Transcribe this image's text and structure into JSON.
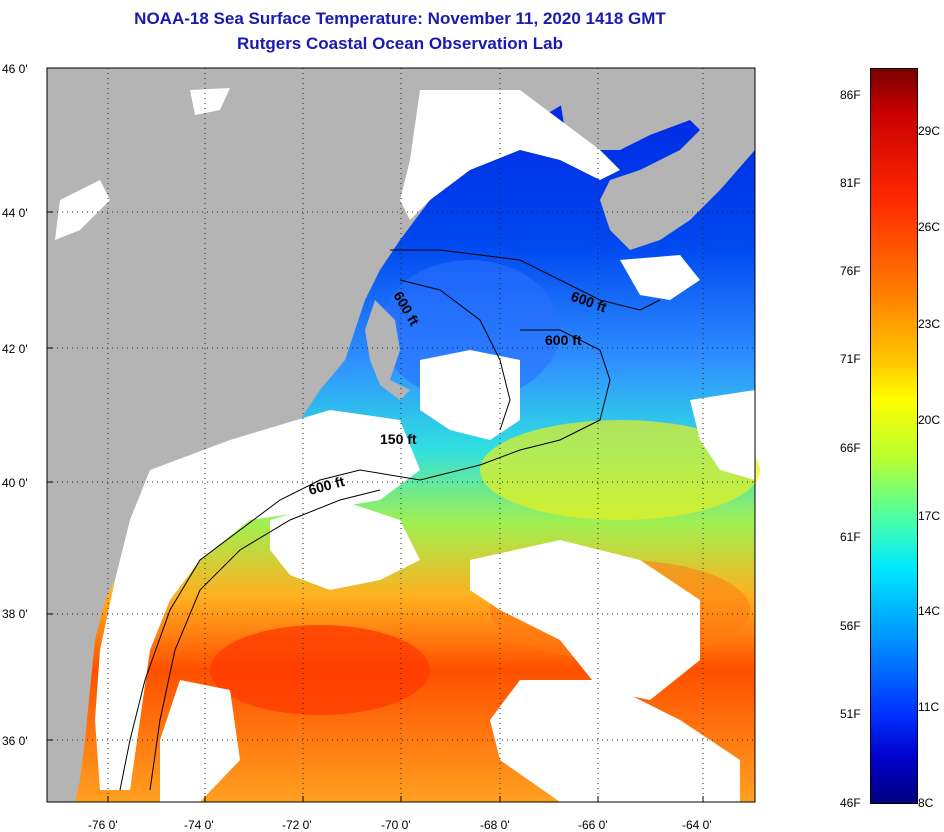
{
  "title": {
    "line1": "NOAA-18 Sea Surface Temperature:  November 11, 2020 1418 GMT",
    "line2": "Rutgers Coastal Ocean Observation Lab"
  },
  "y_ticks": [
    "46 0'",
    "44 0'",
    "42 0'",
    "40 0'",
    "38 0'",
    "36 0'"
  ],
  "x_ticks": [
    "-76 0'",
    "-74 0'",
    "-72 0'",
    "-70 0'",
    "-68 0'",
    "-66 0'",
    "-64 0'"
  ],
  "contour_labels": [
    "600 ft",
    "600 ft",
    "600 ft",
    "150 ft",
    "600 ft"
  ],
  "colorbar": {
    "fahrenheit": [
      "86F",
      "81F",
      "76F",
      "71F",
      "66F",
      "61F",
      "56F",
      "51F",
      "46F"
    ],
    "celsius": [
      "29C",
      "26C",
      "23C",
      "20C",
      "17C",
      "14C",
      "11C",
      "8C"
    ]
  },
  "colors": {
    "land": "#b4b4b4",
    "cloud": "#ffffff",
    "title": "#1a1ab0"
  }
}
